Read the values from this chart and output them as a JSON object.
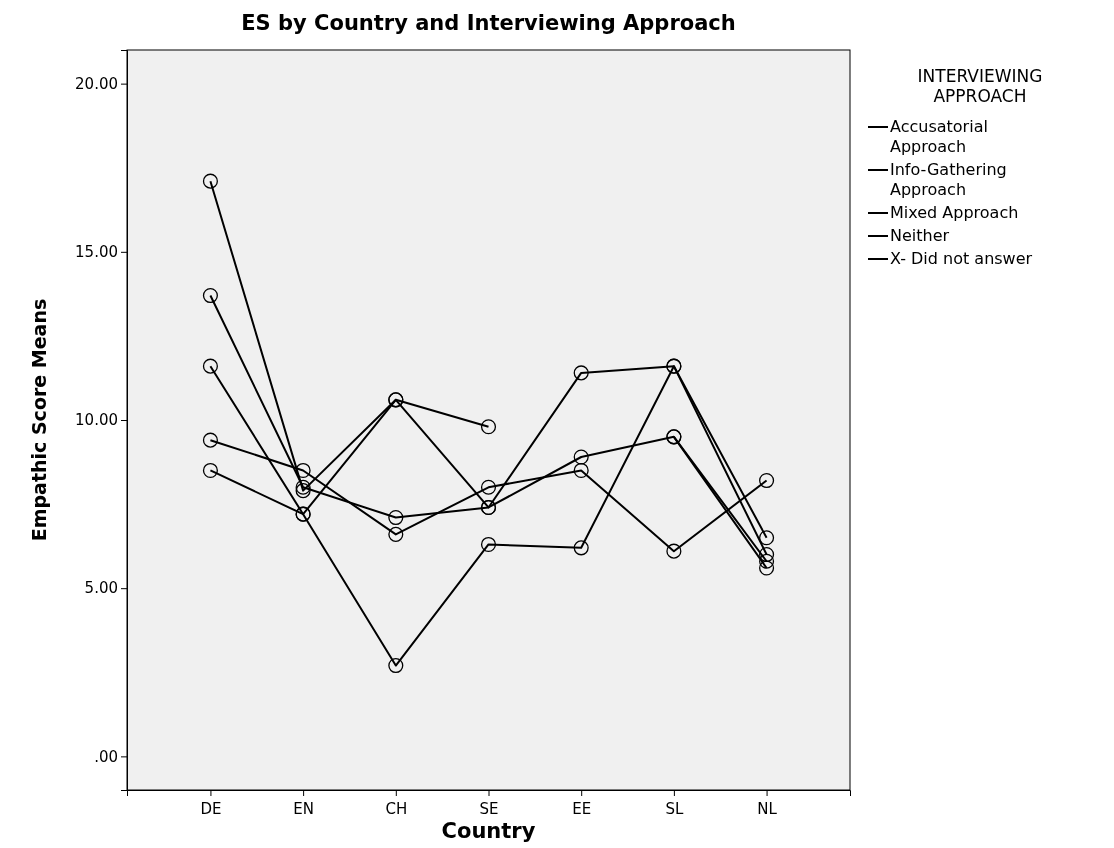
{
  "chart_data": {
    "type": "line",
    "title": "ES by Country and Interviewing Approach",
    "xlabel": "Country",
    "ylabel": "Empathic Score Means",
    "legend_title": "INTERVIEWING APPROACH",
    "categories": [
      "DE",
      "EN",
      "CH",
      "SE",
      "EE",
      "SL",
      "NL"
    ],
    "series": [
      {
        "name": "Accusatorial Approach",
        "color": "#000000",
        "values": [
          9.4,
          8.5,
          6.6,
          8.0,
          8.5,
          6.1,
          8.2
        ]
      },
      {
        "name": "Info-Gathering Approach",
        "color": "#000000",
        "values": [
          11.6,
          7.2,
          2.7,
          6.3,
          6.2,
          11.6,
          6.5
        ]
      },
      {
        "name": "Mixed Approach",
        "color": "#000000",
        "values": [
          8.5,
          7.2,
          10.6,
          7.4,
          11.4,
          11.6,
          6.0
        ]
      },
      {
        "name": "Neither",
        "color": "#000000",
        "values": [
          17.1,
          7.9,
          10.6,
          9.8,
          null,
          9.5,
          5.6
        ]
      },
      {
        "name": "X- Did not answer",
        "color": "#000000",
        "values": [
          13.7,
          8.0,
          7.1,
          7.4,
          8.9,
          9.5,
          5.8
        ]
      }
    ],
    "ylim": [
      -1,
      21
    ],
    "yticks": [
      {
        "value": 0,
        "label": ".00"
      },
      {
        "value": 5,
        "label": "5.00"
      },
      {
        "value": 10,
        "label": "10.00"
      },
      {
        "value": 15,
        "label": "15.00"
      },
      {
        "value": 20,
        "label": "20.00"
      }
    ],
    "legend": "top right",
    "marker": "circle",
    "line_style": "solid"
  }
}
